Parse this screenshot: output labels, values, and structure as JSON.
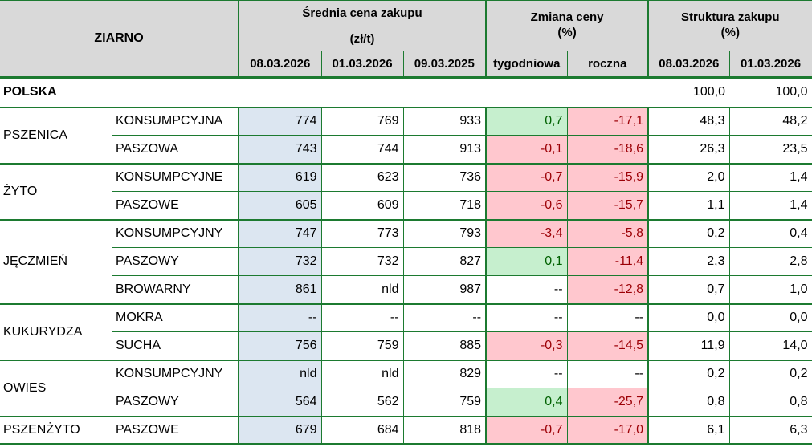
{
  "colors": {
    "border_green": "#1c7a30",
    "header_bg": "#d9d9d9",
    "highlight_col_bg": "#dce6f1",
    "positive_bg": "#c6efce",
    "positive_text": "#006100",
    "negative_bg": "#ffc7ce",
    "negative_text": "#9c0006"
  },
  "header": {
    "ziarno": "ZIARNO",
    "avg_price": {
      "title": "Średnia cena zakupu",
      "unit": "(zł/t)",
      "cols": [
        "08.03.2026",
        "01.03.2026",
        "09.03.2025"
      ]
    },
    "change": {
      "title": "Zmiana ceny",
      "unit": "(%)",
      "cols": [
        "tygodniowa",
        "roczna"
      ]
    },
    "structure": {
      "title": "Struktura zakupu",
      "unit": "(%)",
      "cols": [
        "08.03.2026",
        "01.03.2026"
      ]
    }
  },
  "summary_row": {
    "label": "POLSKA",
    "structure": [
      "100,0",
      "100,0"
    ]
  },
  "groups": [
    {
      "name": "PSZENICA",
      "rows": [
        {
          "type": "KONSUMPCYJNA",
          "prices": [
            "774",
            "769",
            "933"
          ],
          "weekly": "0,7",
          "weekly_state": "pos",
          "yearly": "-17,1",
          "yearly_state": "neg",
          "structure": [
            "48,3",
            "48,2"
          ]
        },
        {
          "type": "PASZOWA",
          "prices": [
            "743",
            "744",
            "913"
          ],
          "weekly": "-0,1",
          "weekly_state": "neg",
          "yearly": "-18,6",
          "yearly_state": "neg",
          "structure": [
            "26,3",
            "23,5"
          ]
        }
      ]
    },
    {
      "name": "ŻYTO",
      "rows": [
        {
          "type": "KONSUMPCYJNE",
          "prices": [
            "619",
            "623",
            "736"
          ],
          "weekly": "-0,7",
          "weekly_state": "neg",
          "yearly": "-15,9",
          "yearly_state": "neg",
          "structure": [
            "2,0",
            "1,4"
          ]
        },
        {
          "type": "PASZOWE",
          "prices": [
            "605",
            "609",
            "718"
          ],
          "weekly": "-0,6",
          "weekly_state": "neg",
          "yearly": "-15,7",
          "yearly_state": "neg",
          "structure": [
            "1,1",
            "1,4"
          ]
        }
      ]
    },
    {
      "name": "JĘCZMIEŃ",
      "rows": [
        {
          "type": "KONSUMPCYJNY",
          "prices": [
            "747",
            "773",
            "793"
          ],
          "weekly": "-3,4",
          "weekly_state": "neg",
          "yearly": "-5,8",
          "yearly_state": "neg",
          "structure": [
            "0,2",
            "0,4"
          ]
        },
        {
          "type": "PASZOWY",
          "prices": [
            "732",
            "732",
            "827"
          ],
          "weekly": "0,1",
          "weekly_state": "pos",
          "yearly": "-11,4",
          "yearly_state": "neg",
          "structure": [
            "2,3",
            "2,8"
          ]
        },
        {
          "type": "BROWARNY",
          "prices": [
            "861",
            "nld",
            "987"
          ],
          "weekly": "--",
          "weekly_state": "na",
          "yearly": "-12,8",
          "yearly_state": "neg",
          "structure": [
            "0,7",
            "1,0"
          ]
        }
      ]
    },
    {
      "name": "KUKURYDZA",
      "rows": [
        {
          "type": "MOKRA",
          "prices": [
            "--",
            "--",
            "--"
          ],
          "weekly": "--",
          "weekly_state": "na",
          "yearly": "--",
          "yearly_state": "na",
          "structure": [
            "0,0",
            "0,0"
          ]
        },
        {
          "type": "SUCHA",
          "prices": [
            "756",
            "759",
            "885"
          ],
          "weekly": "-0,3",
          "weekly_state": "neg",
          "yearly": "-14,5",
          "yearly_state": "neg",
          "structure": [
            "11,9",
            "14,0"
          ]
        }
      ]
    },
    {
      "name": "OWIES",
      "rows": [
        {
          "type": "KONSUMPCYJNY",
          "prices": [
            "nld",
            "nld",
            "829"
          ],
          "weekly": "--",
          "weekly_state": "na",
          "yearly": "--",
          "yearly_state": "na",
          "structure": [
            "0,2",
            "0,2"
          ]
        },
        {
          "type": "PASZOWY",
          "prices": [
            "564",
            "562",
            "759"
          ],
          "weekly": "0,4",
          "weekly_state": "pos",
          "yearly": "-25,7",
          "yearly_state": "neg",
          "structure": [
            "0,8",
            "0,8"
          ]
        }
      ]
    },
    {
      "name": "PSZENŻYTO",
      "rows": [
        {
          "type": "PASZOWE",
          "prices": [
            "679",
            "684",
            "818"
          ],
          "weekly": "-0,7",
          "weekly_state": "neg",
          "yearly": "-17,0",
          "yearly_state": "neg",
          "structure": [
            "6,1",
            "6,3"
          ]
        }
      ]
    }
  ]
}
